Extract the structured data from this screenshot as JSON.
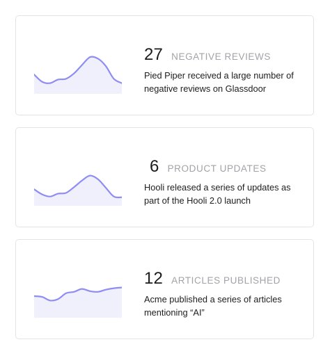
{
  "colors": {
    "line": "#8f8cf3",
    "fill": "#f0f0fd",
    "border": "#e4e4e8",
    "label": "#a2a2a8"
  },
  "cards": [
    {
      "count": "27",
      "label": "NEGATIVE REVIEWS",
      "description": "Pied Piper received a large number of negative reviews on Glassdoor",
      "trend": [
        0.42,
        0.22,
        0.18,
        0.28,
        0.3,
        0.45,
        0.68,
        0.9,
        0.86,
        0.65,
        0.3,
        0.18
      ]
    },
    {
      "count": "6",
      "label": "PRODUCT UPDATES",
      "description": "Hooli released a series of updates as part of the Hooli 2.0 launch",
      "trend": [
        0.34,
        0.2,
        0.14,
        0.22,
        0.24,
        0.4,
        0.58,
        0.72,
        0.62,
        0.38,
        0.14,
        0.12
      ]
    },
    {
      "count": "12",
      "label": "ARTICLES PUBLISHED",
      "description": "Acme published a series of articles mentioning “AI”",
      "trend": [
        0.48,
        0.46,
        0.36,
        0.4,
        0.56,
        0.6,
        0.68,
        0.62,
        0.6,
        0.66,
        0.7,
        0.72
      ]
    }
  ]
}
